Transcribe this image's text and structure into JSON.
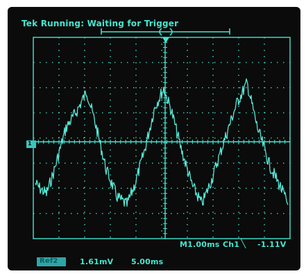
{
  "status": {
    "title": "Tek Running: Waiting for Trigger"
  },
  "channel_marker": {
    "label": "1"
  },
  "readout": {
    "timebase": "M1.00ms",
    "channel": "Ch1",
    "trigger_icon": "falling-edge-trigger-icon",
    "level": "-1.11V"
  },
  "reference": {
    "label": "Ref2",
    "volts_per_div": "1.61mV",
    "time_per_div": "5.00ms"
  },
  "colors": {
    "trace": "#57e8d6",
    "graticule": "#45e6d2",
    "screen": "#0a0b0a"
  }
}
